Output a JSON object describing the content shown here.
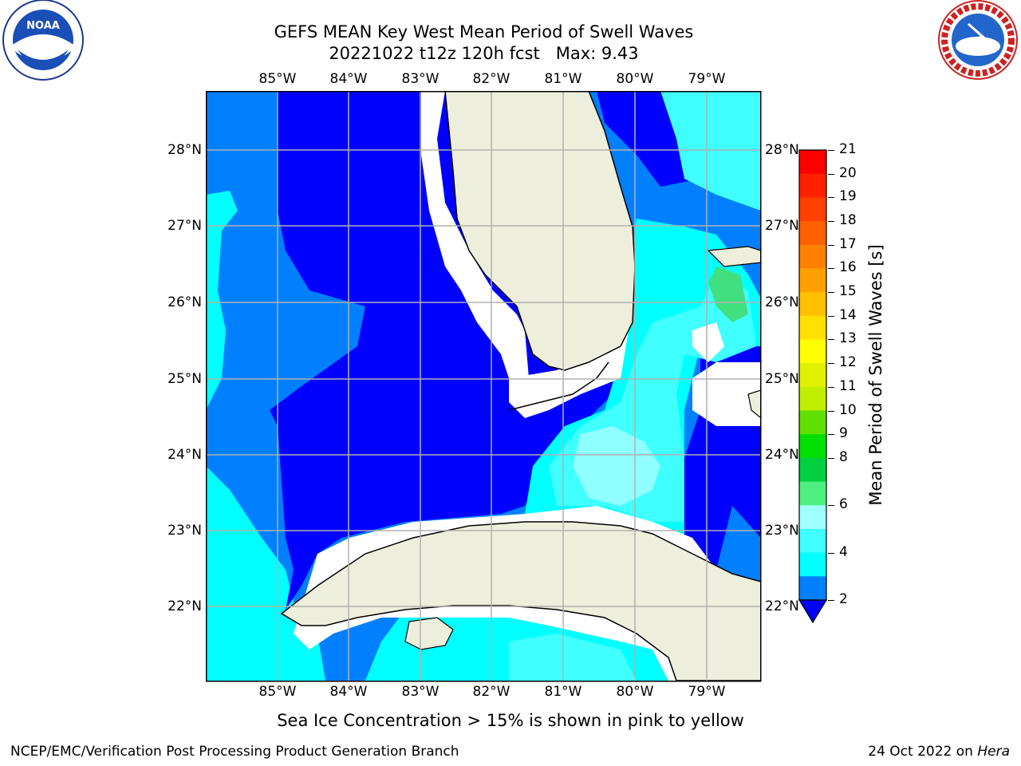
{
  "title": {
    "line1": "GEFS MEAN Key West Mean Period of Swell Waves",
    "line2": "20221022 t12z 120h fcst   Max: 9.43"
  },
  "map": {
    "lon_labels": [
      "85°W",
      "84°W",
      "83°W",
      "82°W",
      "81°W",
      "80°W",
      "79°W"
    ],
    "lat_labels": [
      "28°N",
      "27°N",
      "26°N",
      "25°N",
      "24°N",
      "23°N",
      "22°N"
    ],
    "colors": {
      "land": "#eeeedd",
      "water_deep": "#0000ff",
      "water_2_4": "#0080ff",
      "water_4_6": "#00ffff",
      "water_6_8": "#40ffff",
      "water_8_9": "#90ffff",
      "water_9_10": "#40e080",
      "gridline": "#b0b0b0",
      "coast": "#000000"
    }
  },
  "colorbar": {
    "title": "Mean Period of Swell Waves [s]",
    "ticks": [
      "21",
      "20",
      "19",
      "18",
      "17",
      "16",
      "15",
      "14",
      "13",
      "12",
      "11",
      "10",
      "9",
      "8",
      "6",
      "4",
      "2"
    ],
    "colors": [
      "#ff0000",
      "#ff2000",
      "#ff4000",
      "#ff6000",
      "#ff8000",
      "#ffa000",
      "#ffc000",
      "#ffe000",
      "#ffff00",
      "#e0f000",
      "#c0f000",
      "#60e000",
      "#00e000",
      "#00d040",
      "#50f080",
      "#a0ffff",
      "#40ffff",
      "#00ffff",
      "#0080ff"
    ],
    "under_color": "#0000ff"
  },
  "subtitle": "Sea Ice Concentration > 15% is shown in pink to yellow",
  "footer": {
    "left": "NCEP/EMC/Verification Post Processing Product Generation Branch",
    "right_date": "24 Oct 2022 on ",
    "right_machine": "Hera"
  },
  "logos": {
    "noaa_text": "NOAA",
    "nws_text": "NATIONAL WEATHER SERVICE"
  }
}
